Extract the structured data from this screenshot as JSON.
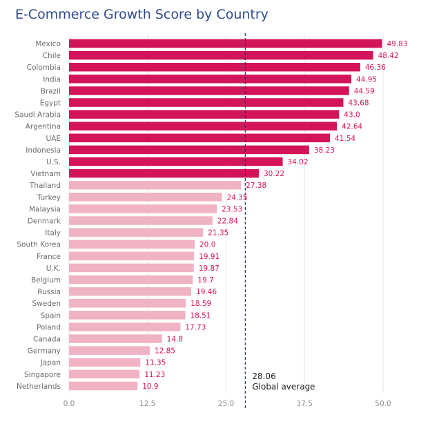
{
  "chart_data": {
    "type": "bar",
    "orientation": "horizontal",
    "title": "E-Commerce Growth Score by Country",
    "categories": [
      "Mexico",
      "Chile",
      "Colombia",
      "India",
      "Brazil",
      "Egypt",
      "Saudi Arabia",
      "Argentina",
      "UAE",
      "Indonesia",
      "U.S.",
      "Vietnam",
      "Thailand",
      "Turkey",
      "Malaysia",
      "Denmark",
      "Italy",
      "South Korea",
      "France",
      "U.K.",
      "Belgium",
      "Russia",
      "Sweden",
      "Spain",
      "Poland",
      "Canada",
      "Germany",
      "Japan",
      "Singapore",
      "Netherlands"
    ],
    "values": [
      49.83,
      48.42,
      46.36,
      44.95,
      44.59,
      43.68,
      43.0,
      42.64,
      41.54,
      38.23,
      34.02,
      30.22,
      27.38,
      24.35,
      23.53,
      22.84,
      21.35,
      20.0,
      19.91,
      19.87,
      19.7,
      19.46,
      18.59,
      18.51,
      17.73,
      14.8,
      12.85,
      11.35,
      11.23,
      10.9
    ],
    "value_labels": [
      "49.83",
      "48.42",
      "46.36",
      "44.95",
      "44.59",
      "43.68",
      "43.0",
      "42.64",
      "41.54",
      "38.23",
      "34.02",
      "30.22",
      "27.38",
      "24.35",
      "23.53",
      "22.84",
      "21.35",
      "20.0",
      "19.91",
      "19.87",
      "19.7",
      "19.46",
      "18.59",
      "18.51",
      "17.73",
      "14.8",
      "12.85",
      "11.35",
      "11.23",
      "10.9"
    ],
    "x_ticks": [
      0,
      12.5,
      25.0,
      37.5,
      50.0
    ],
    "x_tick_labels": [
      "0.0",
      "12.5",
      "25.0",
      "37.5",
      "50.0"
    ],
    "xlim": [
      0,
      53
    ],
    "grid": "vertical",
    "reference_line": {
      "value": 28.06,
      "value_label": "28.06",
      "label": "Global average"
    },
    "colors": {
      "above_average": "#d4145a",
      "below_average": "#f0b3c4",
      "value_text": "#d4145a",
      "title": "#2f4a8a"
    }
  }
}
